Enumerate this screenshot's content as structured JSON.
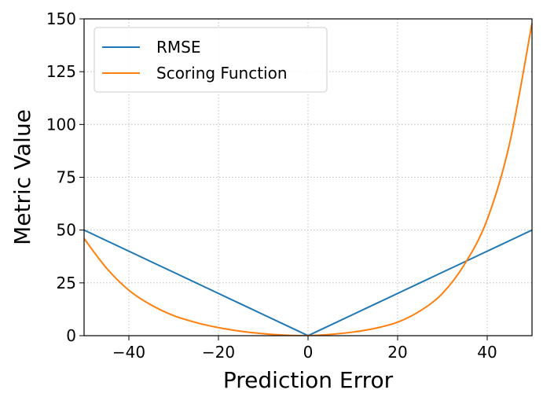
{
  "chart_data": {
    "type": "line",
    "title": "",
    "xlabel": "Prediction Error",
    "ylabel": "Metric Value",
    "xlim": [
      -50,
      50
    ],
    "ylim": [
      0,
      150
    ],
    "xticks": [
      -40,
      -20,
      0,
      20,
      40
    ],
    "xtick_labels": [
      "−40",
      "−20",
      "0",
      "20",
      "40"
    ],
    "yticks": [
      0,
      25,
      50,
      75,
      100,
      125,
      150
    ],
    "ytick_labels": [
      "0",
      "25",
      "50",
      "75",
      "100",
      "125",
      "150"
    ],
    "grid": true,
    "legend_position": "top-left",
    "x": [
      -50,
      -45,
      -40,
      -35,
      -30,
      -25,
      -20,
      -15,
      -10,
      -5,
      0,
      5,
      10,
      15,
      20,
      25,
      30,
      35,
      40,
      45,
      50
    ],
    "series": [
      {
        "name": "RMSE",
        "color": "#1f77b4",
        "values": [
          50,
          45,
          40,
          35,
          30,
          25,
          20,
          15,
          10,
          5,
          0,
          5,
          10,
          15,
          20,
          25,
          30,
          35,
          40,
          45,
          50
        ]
      },
      {
        "name": "Scoring Function",
        "color": "#ff7f0e",
        "values": [
          46,
          32,
          21.5,
          14.5,
          9.5,
          6.2,
          3.8,
          2.1,
          0.95,
          0.25,
          0,
          0.6,
          1.7,
          3.5,
          6.4,
          11.7,
          20,
          34,
          55,
          91,
          148
        ]
      }
    ]
  }
}
